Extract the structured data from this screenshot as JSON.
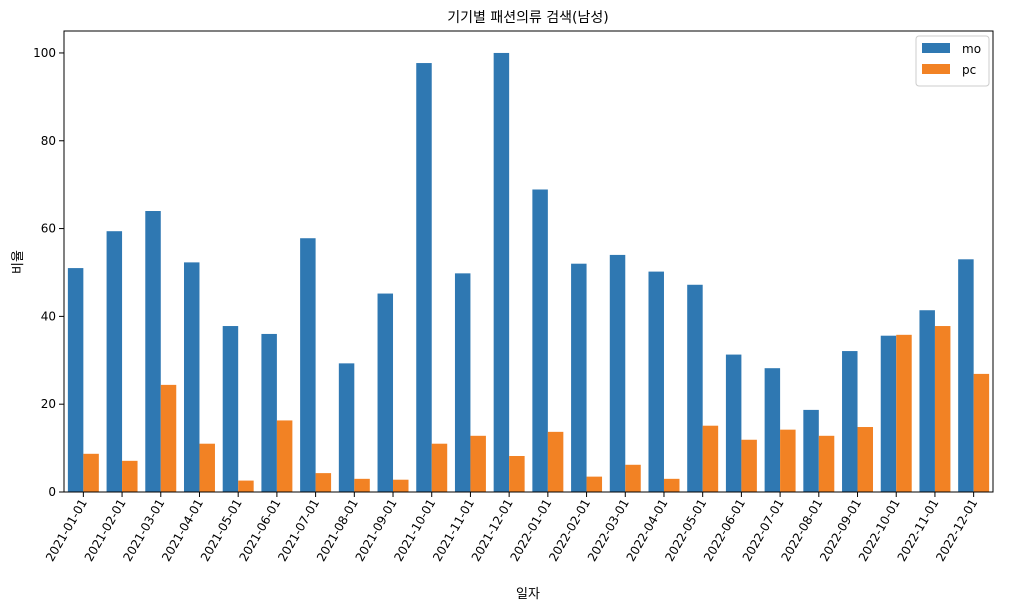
{
  "chart_data": {
    "type": "bar",
    "title": "기기별 패션의류 검색(남성)",
    "xlabel": "일자",
    "ylabel": "비율",
    "ylim": [
      0,
      105
    ],
    "yticks": [
      0,
      20,
      40,
      60,
      80,
      100
    ],
    "grid": false,
    "legend_position": "top-right",
    "categories": [
      "2021-01-01",
      "2021-02-01",
      "2021-03-01",
      "2021-04-01",
      "2021-05-01",
      "2021-06-01",
      "2021-07-01",
      "2021-08-01",
      "2021-09-01",
      "2021-10-01",
      "2021-11-01",
      "2021-12-01",
      "2022-01-01",
      "2022-02-01",
      "2022-03-01",
      "2022-04-01",
      "2022-05-01",
      "2022-06-01",
      "2022-07-01",
      "2022-08-01",
      "2022-09-01",
      "2022-10-01",
      "2022-11-01",
      "2022-12-01"
    ],
    "series": [
      {
        "name": "mo",
        "color": "#2f78b2",
        "values": [
          51,
          59.4,
          64,
          52.3,
          37.8,
          36,
          57.8,
          29.3,
          45.2,
          97.7,
          49.8,
          100,
          68.9,
          52,
          54,
          50.2,
          47.2,
          31.3,
          28.2,
          18.7,
          32.1,
          35.6,
          41.4,
          53
        ]
      },
      {
        "name": "pc",
        "color": "#f28224",
        "values": [
          8.7,
          7.1,
          24.4,
          11,
          2.6,
          16.3,
          4.3,
          3,
          2.8,
          11,
          12.8,
          8.2,
          13.7,
          3.5,
          6.2,
          3,
          15.1,
          11.9,
          14.2,
          12.8,
          14.8,
          35.8,
          37.8,
          26.9
        ]
      }
    ]
  }
}
